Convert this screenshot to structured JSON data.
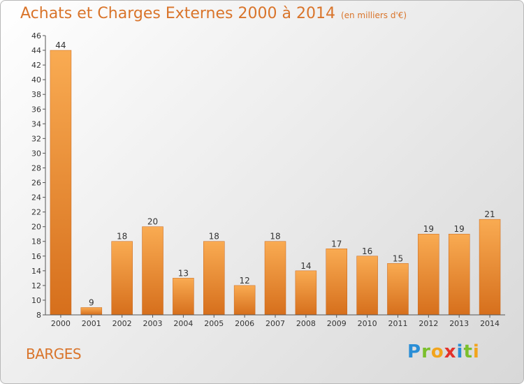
{
  "header": {
    "title": "Achats et Charges Externes 2000 à 2014",
    "subtitle": "(en milliers d'€)"
  },
  "footer": {
    "place": "BARGES",
    "logo_text": "Proxiti"
  },
  "colors": {
    "title": "#d9742a",
    "bar_light": "#f7a84e",
    "bar_dark": "#d8721f",
    "axis": "#555555"
  },
  "chart_data": {
    "type": "bar",
    "title": "Achats et Charges Externes 2000 à 2014",
    "subtitle": "(en milliers d'€)",
    "categories": [
      "2000",
      "2001",
      "2002",
      "2003",
      "2004",
      "2005",
      "2006",
      "2007",
      "2008",
      "2009",
      "2010",
      "2011",
      "2012",
      "2013",
      "2014"
    ],
    "values": [
      44,
      9,
      18,
      20,
      13,
      18,
      12,
      18,
      14,
      17,
      16,
      15,
      19,
      19,
      21
    ],
    "ylim": [
      8,
      46
    ],
    "yticks": [
      8,
      10,
      12,
      14,
      16,
      18,
      20,
      22,
      24,
      26,
      28,
      30,
      32,
      34,
      36,
      38,
      40,
      42,
      44,
      46
    ],
    "xlabel": "",
    "ylabel": "",
    "grid": false,
    "legend": "none",
    "data_labels": true
  }
}
